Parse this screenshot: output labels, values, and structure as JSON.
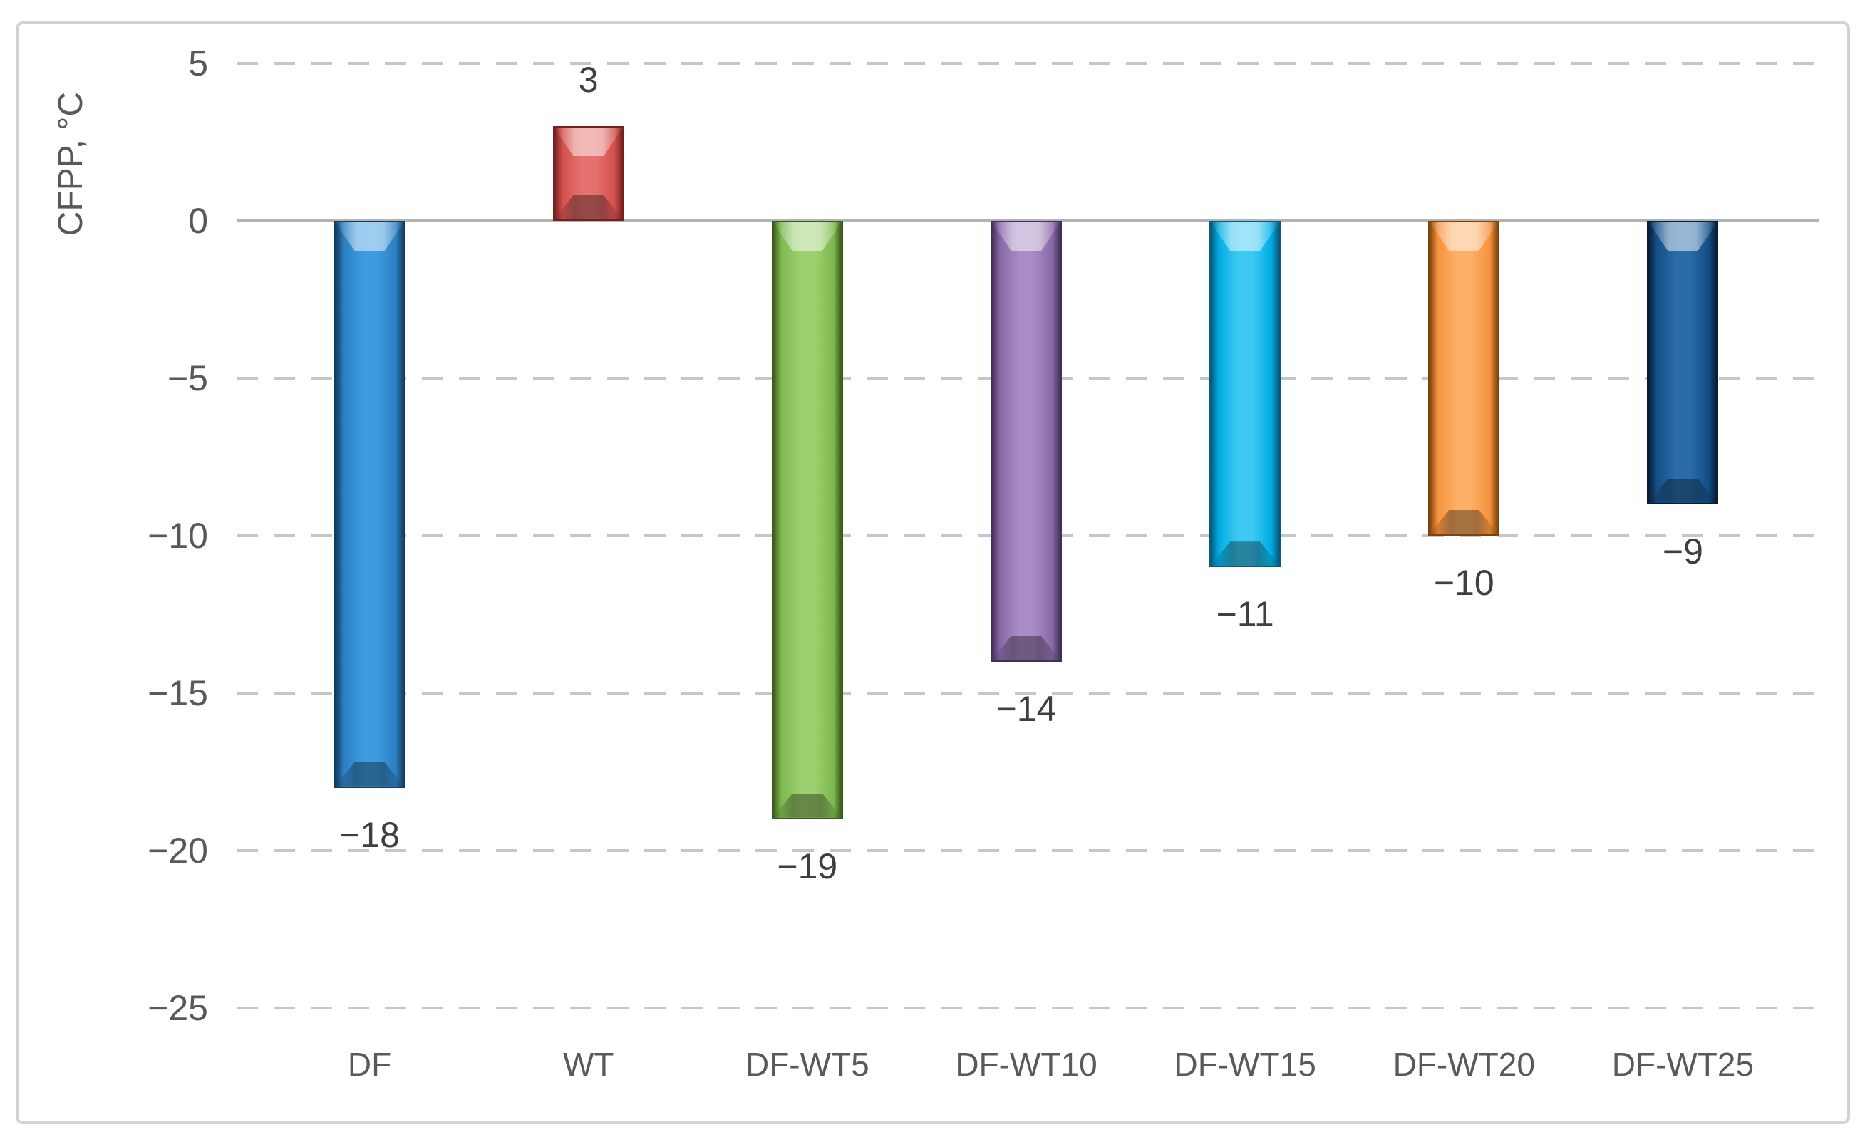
{
  "figure": {
    "frame_color": "#d2d2d2",
    "background_color": "#ffffff",
    "text_color": "#595959",
    "data_label_color": "#3f3f3f",
    "gridline_color": "#c6c6c6",
    "zero_line_color": "#b3b3b3"
  },
  "chart_data": {
    "type": "bar",
    "title": "",
    "xlabel": "",
    "ylabel": "CFPP, °C",
    "ylim": [
      -25,
      5
    ],
    "ytick_step": 5,
    "grid": true,
    "grid_style": "dashed",
    "legend": false,
    "categories": [
      "DF",
      "WT",
      "DF-WT5",
      "DF-WT10",
      "DF-WT15",
      "DF-WT20",
      "DF-WT25"
    ],
    "values": [
      -18,
      3,
      -19,
      -14,
      -11,
      -10,
      -9
    ],
    "data_labels": [
      "−18",
      "3",
      "−19",
      "−14",
      "−11",
      "−10",
      "−9"
    ],
    "yticks": [
      {
        "value": 5,
        "label": "5"
      },
      {
        "value": 0,
        "label": "0"
      },
      {
        "value": -5,
        "label": "−5"
      },
      {
        "value": -10,
        "label": "−10"
      },
      {
        "value": -15,
        "label": "−15"
      },
      {
        "value": -20,
        "label": "−20"
      },
      {
        "value": -25,
        "label": "−25"
      }
    ],
    "bar_colors": [
      {
        "name": "blue",
        "light": "#3e9bdf",
        "base": "#2b7fc2",
        "dark": "#143c5e"
      },
      {
        "name": "red",
        "light": "#e5726f",
        "base": "#d2504d",
        "dark": "#761f1d"
      },
      {
        "name": "green",
        "light": "#9dd06f",
        "base": "#7eb84e",
        "dark": "#3c5a1d"
      },
      {
        "name": "purple",
        "light": "#a98cc5",
        "base": "#8a68a8",
        "dark": "#433058"
      },
      {
        "name": "cyan",
        "light": "#3ec9f5",
        "base": "#00ade3",
        "dark": "#0a5a7a"
      },
      {
        "name": "orange",
        "light": "#fcb065",
        "base": "#f5923e",
        "dark": "#7e430c"
      },
      {
        "name": "navy",
        "light": "#2a6ca8",
        "base": "#144e85",
        "dark": "#061d36"
      }
    ]
  }
}
